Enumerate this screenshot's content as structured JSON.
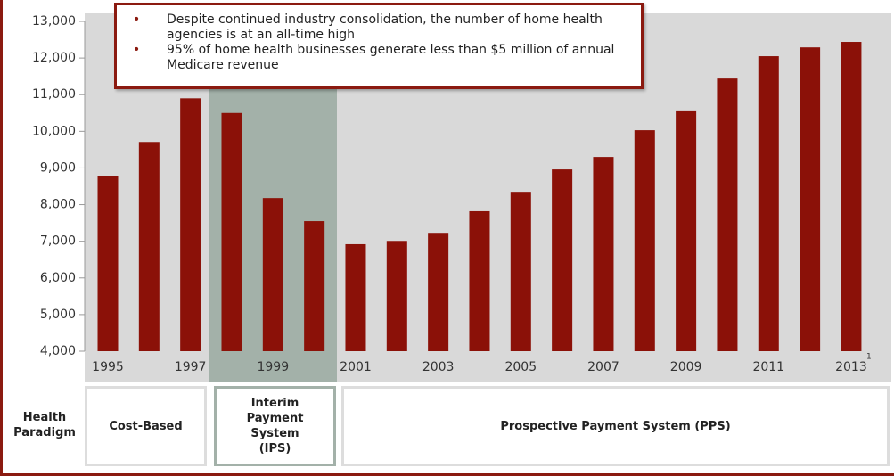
{
  "chart_data": {
    "type": "bar",
    "categories": [
      "1995",
      null,
      "1997",
      null,
      "1999",
      null,
      "2001",
      null,
      "2003",
      null,
      "2005",
      null,
      "2007",
      null,
      "2009",
      null,
      "2011",
      null,
      "2013"
    ],
    "values": [
      8790,
      9710,
      10900,
      10500,
      8180,
      7550,
      6920,
      7010,
      7230,
      7820,
      8350,
      8960,
      9300,
      10030,
      10570,
      11440,
      12050,
      12290,
      12440
    ],
    "color": "#8b1108",
    "ylim": [
      4000,
      13000
    ],
    "yticks": [
      {
        "value": 4000,
        "label": "4,000"
      },
      {
        "value": 5000,
        "label": "5,000"
      },
      {
        "value": 6000,
        "label": "6,000"
      },
      {
        "value": 7000,
        "label": "7,000"
      },
      {
        "value": 8000,
        "label": "8,000"
      },
      {
        "value": 9000,
        "label": "9,000"
      },
      {
        "value": 10000,
        "label": "10,000"
      },
      {
        "value": 11000,
        "label": "11,000"
      },
      {
        "value": 12000,
        "label": "12,000"
      },
      {
        "value": 13000,
        "label": "13,000"
      }
    ],
    "footnote_marker": "1",
    "annotations": [
      "Despite continued industry consolidation, the number of home health agencies is at an all-time high",
      "95% of home health businesses generate less than $5 million of annual Medicare revenue"
    ],
    "paradigm": {
      "label": "Health Paradigm",
      "periods": [
        "Cost-Based",
        "Interim Payment System (IPS)",
        "Prospective Payment System (PPS)"
      ]
    }
  }
}
